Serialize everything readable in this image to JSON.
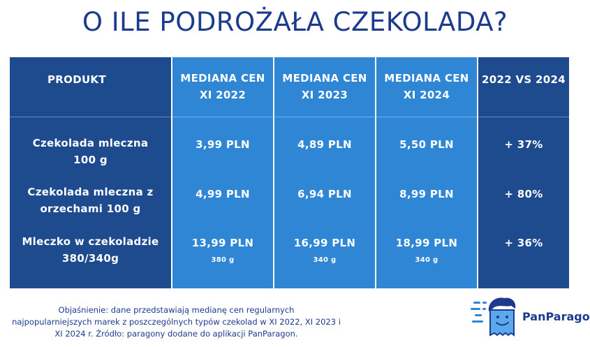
{
  "title": "O ILE PODROŻAŁA CZEKOLADA?",
  "table": {
    "headers": [
      [
        "PRODUKT"
      ],
      [
        "MEDIANA CEN",
        "XI 2022"
      ],
      [
        "MEDIANA CEN",
        "XI 2023"
      ],
      [
        "MEDIANA CEN",
        "XI 2024"
      ],
      [
        "2022 VS 2024"
      ]
    ],
    "rows": [
      {
        "product": [
          "Czekolada mleczna",
          "100 g"
        ],
        "p2022": "3,99 PLN",
        "p2023": "4,89 PLN",
        "p2024": "5,50 PLN",
        "change": "+ 37%"
      },
      {
        "product": [
          "Czekolada mleczna z",
          "orzechami 100 g"
        ],
        "p2022": "4,99 PLN",
        "p2023": "6,94 PLN",
        "p2024": "8,99 PLN",
        "change": "+ 80%"
      },
      {
        "product": [
          "Mleczko w czekoladzie",
          "380/340g"
        ],
        "p2022": "13,99 PLN",
        "p2023": "16,99 PLN",
        "p2024": "18,99 PLN",
        "change": "+ 36%",
        "sub2022": "380 g",
        "sub2023": "340 g",
        "sub2024": "340 g"
      }
    ]
  },
  "note": [
    "Objaśnienie: dane przedstawiają medianę cen regularnych",
    "najpopularniejszych marek z poszczególnych typów czekolad w XI 2022, XI 2023 i",
    "XI 2024 r.  Źródło: paragony dodane do aplikacji PanParagon."
  ],
  "logo": {
    "text": "PanParagon",
    "icon": "panparagon-mascot-icon"
  },
  "colors": {
    "dark_blue": "#1e4a8e",
    "light_blue": "#2f86d4",
    "title": "#1c3b8f"
  }
}
